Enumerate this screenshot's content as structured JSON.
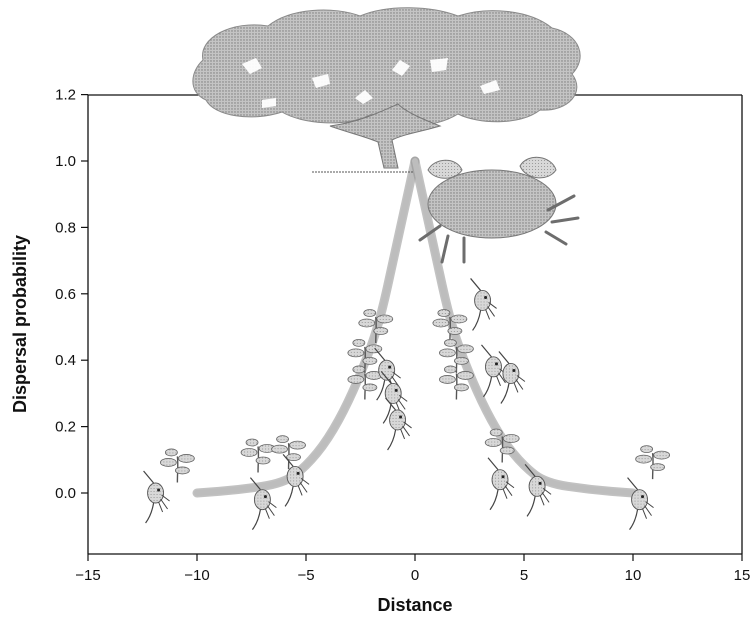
{
  "chart_data": {
    "type": "line",
    "title": "",
    "xlabel": "Distance",
    "ylabel": "Dispersal probability",
    "xlim": [
      -15,
      15
    ],
    "ylim": [
      -0.18,
      1.2
    ],
    "x_ticks": [
      -15,
      -10,
      -5,
      0,
      5,
      10,
      15
    ],
    "x_tick_labels": [
      "−15",
      "−10",
      "−5",
      "0",
      "5",
      "10",
      "15"
    ],
    "y_ticks": [
      0.0,
      0.2,
      0.4,
      0.6,
      0.8,
      1.0,
      1.2
    ],
    "y_tick_labels": [
      "0.0",
      "0.2",
      "0.4",
      "0.6",
      "0.8",
      "1.0",
      "1.2"
    ],
    "grid": false,
    "legend": "none",
    "series": [
      {
        "x": [
          -10,
          -8,
          -6,
          -5,
          -4,
          -3,
          -2,
          -1.5,
          -1,
          -0.5,
          0
        ],
        "y": [
          0.0,
          0.01,
          0.03,
          0.08,
          0.16,
          0.28,
          0.44,
          0.55,
          0.7,
          0.85,
          1.0
        ]
      },
      {
        "x": [
          0,
          0.5,
          1,
          1.5,
          2,
          3,
          4,
          5,
          6,
          8,
          10
        ],
        "y": [
          1.0,
          0.85,
          0.7,
          0.55,
          0.44,
          0.28,
          0.16,
          0.08,
          0.03,
          0.01,
          0.0
        ]
      }
    ],
    "colors": {
      "curve": "#bdbdbd",
      "tree": "#a9a9a9",
      "crab": "#9e9e9e",
      "seedling": "#b5b5b5",
      "axis": "#111111"
    },
    "icons": [
      "tree-canopy-icon",
      "crab-icon",
      "seedling-icon",
      "larva-icon"
    ]
  }
}
